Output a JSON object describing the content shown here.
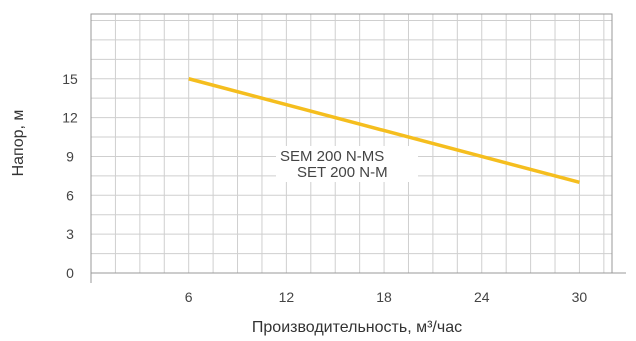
{
  "chart_data": {
    "type": "line",
    "xlabel": "Производительность, м³/час",
    "ylabel": "Напор, м",
    "xlim": [
      0,
      32
    ],
    "ylim": [
      0,
      20
    ],
    "x_ticks": [
      6,
      12,
      18,
      24,
      30
    ],
    "y_ticks": [
      0,
      3,
      6,
      9,
      12,
      15
    ],
    "x_grid_step": 1.5,
    "y_grid_step": 1.5,
    "grid": true,
    "series": [
      {
        "name": "SEM 200 N-MS / SET 200 N-M",
        "color": "#F5BE1E",
        "x": [
          6,
          30
        ],
        "y": [
          15,
          7
        ]
      }
    ],
    "annotations": [
      "SEM 200 N-MS",
      "SET 200 N-M"
    ]
  }
}
